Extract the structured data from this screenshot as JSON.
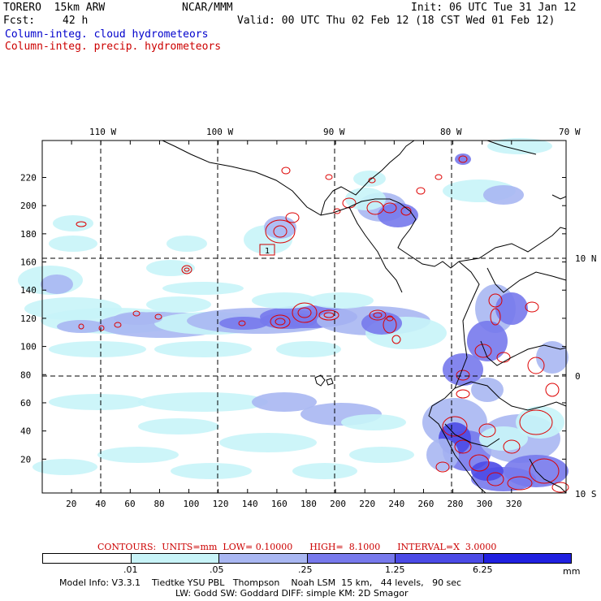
{
  "header": {
    "model": "TORERO  15km ARW",
    "org": "NCAR/MMM",
    "init": "Init: 06 UTC Tue 31 Jan 12",
    "fcst_label": "Fcst:",
    "fcst_value": "42 h",
    "valid": "Valid: 00 UTC Thu 02 Feb 12 (18 CST Wed 01 Feb 12)",
    "field1": "Column-integ. cloud hydrometeors",
    "field2": "Column-integ. precip. hydrometeors"
  },
  "map": {
    "lon_labels": [
      "110 W",
      "100 W",
      "90 W",
      "80 W",
      "70 W"
    ],
    "lat_labels": [
      "10 N",
      "0",
      "10 S"
    ],
    "y_ticks": [
      "220",
      "200",
      "180",
      "160",
      "140",
      "120",
      "100",
      "80",
      "60",
      "40",
      "20"
    ],
    "x_ticks": [
      "20",
      "40",
      "60",
      "80",
      "100",
      "120",
      "140",
      "160",
      "180",
      "200",
      "220",
      "240",
      "260",
      "280",
      "300",
      "320"
    ],
    "marker_label": "1",
    "colors": {
      "c1": "#c8f4f8",
      "c2": "#a9b7f2",
      "c3": "#7779ec",
      "c4": "#4b4ae6",
      "c5": "#2020e0",
      "contour": "#dd0000"
    }
  },
  "contour_info": {
    "text": "CONTOURS:  UNITS=mm  LOW= 0.10000      HIGH=  8.1000      INTERVAL=X  3.0000"
  },
  "colorbar": {
    "labels": [
      ".01",
      ".05",
      ".25",
      "1.25",
      "6.25"
    ],
    "unit": "mm"
  },
  "footer": {
    "line1": "Model Info: V3.3.1    Tiedtke YSU PBL   Thompson    Noah LSM  15 km,   44 levels,   90 sec",
    "line2": "LW: Godd SW: Goddard DIFF: simple KM: 2D Smagor"
  }
}
